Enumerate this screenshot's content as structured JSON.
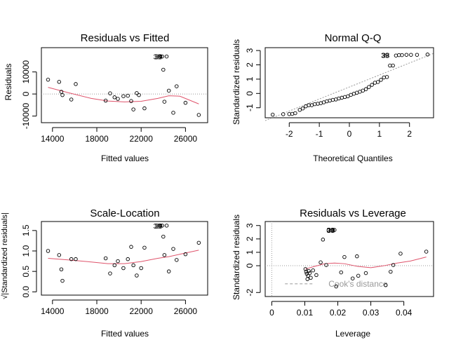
{
  "chart_data": [
    {
      "type": "scatter",
      "title": "Residuals vs Fitted",
      "xlabel": "Fitted values",
      "ylabel": "Residuals",
      "xlim": [
        13000,
        28000
      ],
      "ylim": [
        -13000,
        21000
      ],
      "xticks": [
        14000,
        18000,
        22000,
        26000
      ],
      "yticks": [
        -10000,
        0,
        10000
      ],
      "ref_line": {
        "type": "h",
        "value": 0,
        "style": "dotted"
      },
      "points": [
        [
          13600,
          6500
        ],
        [
          14600,
          5500
        ],
        [
          14800,
          1000
        ],
        [
          14900,
          -500
        ],
        [
          15700,
          -2500
        ],
        [
          16100,
          4500
        ],
        [
          18800,
          -3000
        ],
        [
          19200,
          300
        ],
        [
          19600,
          -1500
        ],
        [
          19900,
          -2200
        ],
        [
          20400,
          -1000
        ],
        [
          20800,
          -800
        ],
        [
          21100,
          -3200
        ],
        [
          21300,
          -7000
        ],
        [
          21600,
          400
        ],
        [
          21800,
          -500
        ],
        [
          22300,
          -6500
        ],
        [
          23700,
          17000
        ],
        [
          23900,
          17000
        ],
        [
          24000,
          11000
        ],
        [
          24100,
          -3500
        ],
        [
          24300,
          17000
        ],
        [
          24500,
          1500
        ],
        [
          24900,
          -8500
        ],
        [
          25200,
          3500
        ],
        [
          26000,
          -4000
        ],
        [
          27200,
          -9500
        ]
      ],
      "point_labels": [
        {
          "text": "39",
          "x": 23900,
          "y": 17000
        },
        {
          "text": "38",
          "x": 23700,
          "y": 17000
        }
      ],
      "smooth": {
        "x": [
          13600,
          15500,
          17500,
          19000,
          20500,
          22000,
          23500,
          24500,
          25500,
          27200
        ],
        "y": [
          3000,
          500,
          -2000,
          -3200,
          -3600,
          -3300,
          -2000,
          -800,
          -1000,
          -4500
        ]
      },
      "colors": {
        "smooth": "#DF536B",
        "ref": "#999999"
      }
    },
    {
      "type": "scatter",
      "title": "Normal Q-Q",
      "xlabel": "Theoretical Quantiles",
      "ylabel": "Standardized residuals",
      "xlim": [
        -2.8,
        2.8
      ],
      "ylim": [
        -1.7,
        3.2
      ],
      "xticks": [
        -2,
        -1,
        0,
        1,
        2
      ],
      "yticks": [
        -1,
        0,
        1,
        2,
        3
      ],
      "ref_line": {
        "type": "ab",
        "x": [
          -2.8,
          2.8
        ],
        "y": [
          -1.9,
          2.8
        ],
        "style": "dotted"
      },
      "points": [
        [
          -2.55,
          -1.48
        ],
        [
          -2.2,
          -1.45
        ],
        [
          -2.0,
          -1.44
        ],
        [
          -1.9,
          -1.43
        ],
        [
          -1.8,
          -1.38
        ],
        [
          -1.65,
          -1.15
        ],
        [
          -1.55,
          -1.05
        ],
        [
          -1.45,
          -0.9
        ],
        [
          -1.35,
          -0.82
        ],
        [
          -1.25,
          -0.82
        ],
        [
          -1.15,
          -0.75
        ],
        [
          -1.05,
          -0.72
        ],
        [
          -0.95,
          -0.68
        ],
        [
          -0.85,
          -0.62
        ],
        [
          -0.75,
          -0.55
        ],
        [
          -0.65,
          -0.5
        ],
        [
          -0.55,
          -0.45
        ],
        [
          -0.45,
          -0.42
        ],
        [
          -0.35,
          -0.35
        ],
        [
          -0.25,
          -0.3
        ],
        [
          -0.15,
          -0.25
        ],
        [
          -0.05,
          -0.2
        ],
        [
          0.05,
          -0.1
        ],
        [
          0.15,
          -0.02
        ],
        [
          0.25,
          0.05
        ],
        [
          0.35,
          0.12
        ],
        [
          0.45,
          0.2
        ],
        [
          0.55,
          0.3
        ],
        [
          0.65,
          0.45
        ],
        [
          0.75,
          0.6
        ],
        [
          0.85,
          0.75
        ],
        [
          0.95,
          0.8
        ],
        [
          1.05,
          0.95
        ],
        [
          1.15,
          1.12
        ],
        [
          1.25,
          1.15
        ],
        [
          1.35,
          1.95
        ],
        [
          1.45,
          1.95
        ],
        [
          1.55,
          2.65
        ],
        [
          1.65,
          2.68
        ],
        [
          1.75,
          2.68
        ],
        [
          1.9,
          2.7
        ],
        [
          2.05,
          2.7
        ],
        [
          2.25,
          2.7
        ],
        [
          2.6,
          2.72
        ]
      ],
      "point_labels": [
        {
          "text": "39",
          "x": 1.3,
          "y": 2.68
        },
        {
          "text": "38",
          "x": 1.3,
          "y": 2.68
        }
      ],
      "colors": {
        "ref": "#999999"
      }
    },
    {
      "type": "scatter",
      "title": "Scale-Location",
      "xlabel": "Fitted values",
      "ylabel": "√|Standardized residuals|",
      "xlim": [
        13000,
        28000
      ],
      "ylim": [
        -0.08,
        1.72
      ],
      "xticks": [
        14000,
        18000,
        22000,
        26000
      ],
      "yticks": [
        0.0,
        0.5,
        1.0,
        1.5
      ],
      "points": [
        [
          13600,
          1.0
        ],
        [
          14600,
          0.9
        ],
        [
          14800,
          0.55
        ],
        [
          14900,
          0.27
        ],
        [
          15700,
          0.8
        ],
        [
          16100,
          0.8
        ],
        [
          18800,
          0.82
        ],
        [
          19200,
          0.45
        ],
        [
          19600,
          0.65
        ],
        [
          19900,
          0.75
        ],
        [
          20400,
          0.58
        ],
        [
          20800,
          0.8
        ],
        [
          21100,
          1.1
        ],
        [
          21300,
          0.65
        ],
        [
          21600,
          0.4
        ],
        [
          22000,
          0.58
        ],
        [
          22300,
          1.08
        ],
        [
          23700,
          1.62
        ],
        [
          23900,
          1.62
        ],
        [
          24000,
          1.35
        ],
        [
          24100,
          0.9
        ],
        [
          24300,
          1.62
        ],
        [
          24500,
          0.5
        ],
        [
          24900,
          1.05
        ],
        [
          25200,
          0.78
        ],
        [
          26000,
          0.92
        ],
        [
          27200,
          1.2
        ]
      ],
      "point_labels": [
        {
          "text": "39",
          "x": 23900,
          "y": 1.62
        },
        {
          "text": "38",
          "x": 23700,
          "y": 1.62
        }
      ],
      "smooth": {
        "x": [
          13600,
          15500,
          17500,
          19000,
          20500,
          22000,
          23500,
          24500,
          25500,
          27200
        ],
        "y": [
          0.82,
          0.78,
          0.73,
          0.69,
          0.69,
          0.74,
          0.82,
          0.86,
          0.92,
          1.02
        ]
      },
      "colors": {
        "smooth": "#DF536B"
      }
    },
    {
      "type": "scatter",
      "title": "Residuals vs Leverage",
      "xlabel": "Leverage",
      "ylabel": "Standardized residuals",
      "xlim": [
        -0.002,
        0.049
      ],
      "ylim": [
        -2.3,
        3.3
      ],
      "xticks": [
        0.0,
        0.01,
        0.02,
        0.03,
        0.04
      ],
      "ytick_labels": [
        "-2",
        "0",
        "1",
        "2",
        "3"
      ],
      "ytick_values": [
        -2,
        0,
        1,
        2,
        3
      ],
      "ref_lines": [
        {
          "type": "h",
          "value": 0,
          "style": "dotted"
        },
        {
          "type": "v",
          "value": 0,
          "style": "dotted"
        }
      ],
      "legend": {
        "text": "Cook's distance",
        "placement": "bottom-left"
      },
      "points": [
        [
          0.0102,
          -0.25
        ],
        [
          0.0104,
          -0.45
        ],
        [
          0.0106,
          -0.6
        ],
        [
          0.0108,
          -1.0
        ],
        [
          0.011,
          -0.75
        ],
        [
          0.0112,
          -0.4
        ],
        [
          0.0115,
          -0.55
        ],
        [
          0.0118,
          -0.9
        ],
        [
          0.0125,
          -0.35
        ],
        [
          0.0135,
          -0.7
        ],
        [
          0.0148,
          0.25
        ],
        [
          0.0155,
          1.95
        ],
        [
          0.0165,
          0.05
        ],
        [
          0.0172,
          2.65
        ],
        [
          0.0185,
          2.65
        ],
        [
          0.019,
          2.67
        ],
        [
          0.0195,
          -1.55
        ],
        [
          0.021,
          -0.5
        ],
        [
          0.022,
          0.65
        ],
        [
          0.0245,
          -0.95
        ],
        [
          0.0258,
          0.7
        ],
        [
          0.0262,
          -0.75
        ],
        [
          0.0285,
          -0.55
        ],
        [
          0.0345,
          -1.45
        ],
        [
          0.036,
          -0.45
        ],
        [
          0.0368,
          0.05
        ],
        [
          0.039,
          0.9
        ],
        [
          0.0468,
          1.05
        ]
      ],
      "point_labels": [
        {
          "text": "39",
          "x": 0.0188,
          "y": 2.66
        },
        {
          "text": "38",
          "x": 0.0188,
          "y": 2.66
        }
      ],
      "smooth": {
        "x": [
          0.0102,
          0.013,
          0.016,
          0.019,
          0.022,
          0.026,
          0.03,
          0.034,
          0.038,
          0.042,
          0.0468
        ],
        "y": [
          -0.25,
          -0.05,
          0.15,
          0.2,
          0.15,
          -0.05,
          -0.15,
          0.0,
          0.2,
          0.35,
          0.65
        ]
      },
      "cooks": {
        "x": [
          0.004,
          0.0375
        ],
        "y": -1.35
      },
      "colors": {
        "smooth": "#DF536B",
        "ref": "#999999",
        "cooks": "#999999"
      }
    }
  ]
}
